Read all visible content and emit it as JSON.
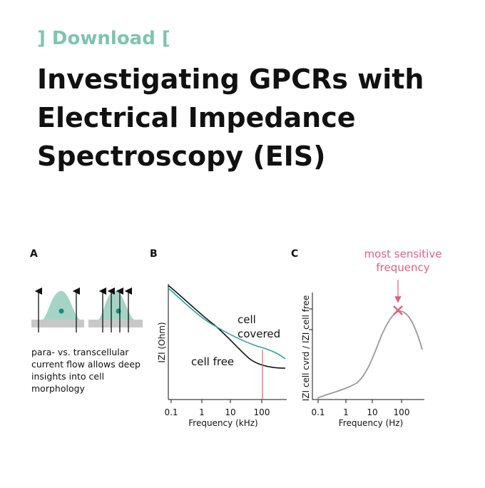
{
  "header": {
    "tag": "] Download [",
    "title_lines": [
      "Investigating GPCRs with",
      "Electrical Impedance",
      "Spectroscopy (EIS)"
    ]
  },
  "panels": [
    {
      "label": "A",
      "caption_lines": [
        "para- vs. transcellular",
        "current flow allows deep",
        "insights into cell",
        "morphology"
      ]
    },
    {
      "label": "B",
      "x_ticks": [
        "0.1",
        "1",
        "10",
        "100"
      ],
      "x_label": "Frequency (kHz)",
      "y_label": "IZI (Ohm)",
      "curve_labels": [
        "cell",
        "covered",
        "cell free"
      ]
    },
    {
      "label": "C",
      "x_ticks": [
        "0.1",
        "1",
        "10",
        "100"
      ],
      "x_label": "Frequency (Hz)",
      "y_label": "IZI cell cvrd / IZI cell free",
      "annotation_lines": [
        "most sensitive",
        "frequency"
      ]
    }
  ]
}
